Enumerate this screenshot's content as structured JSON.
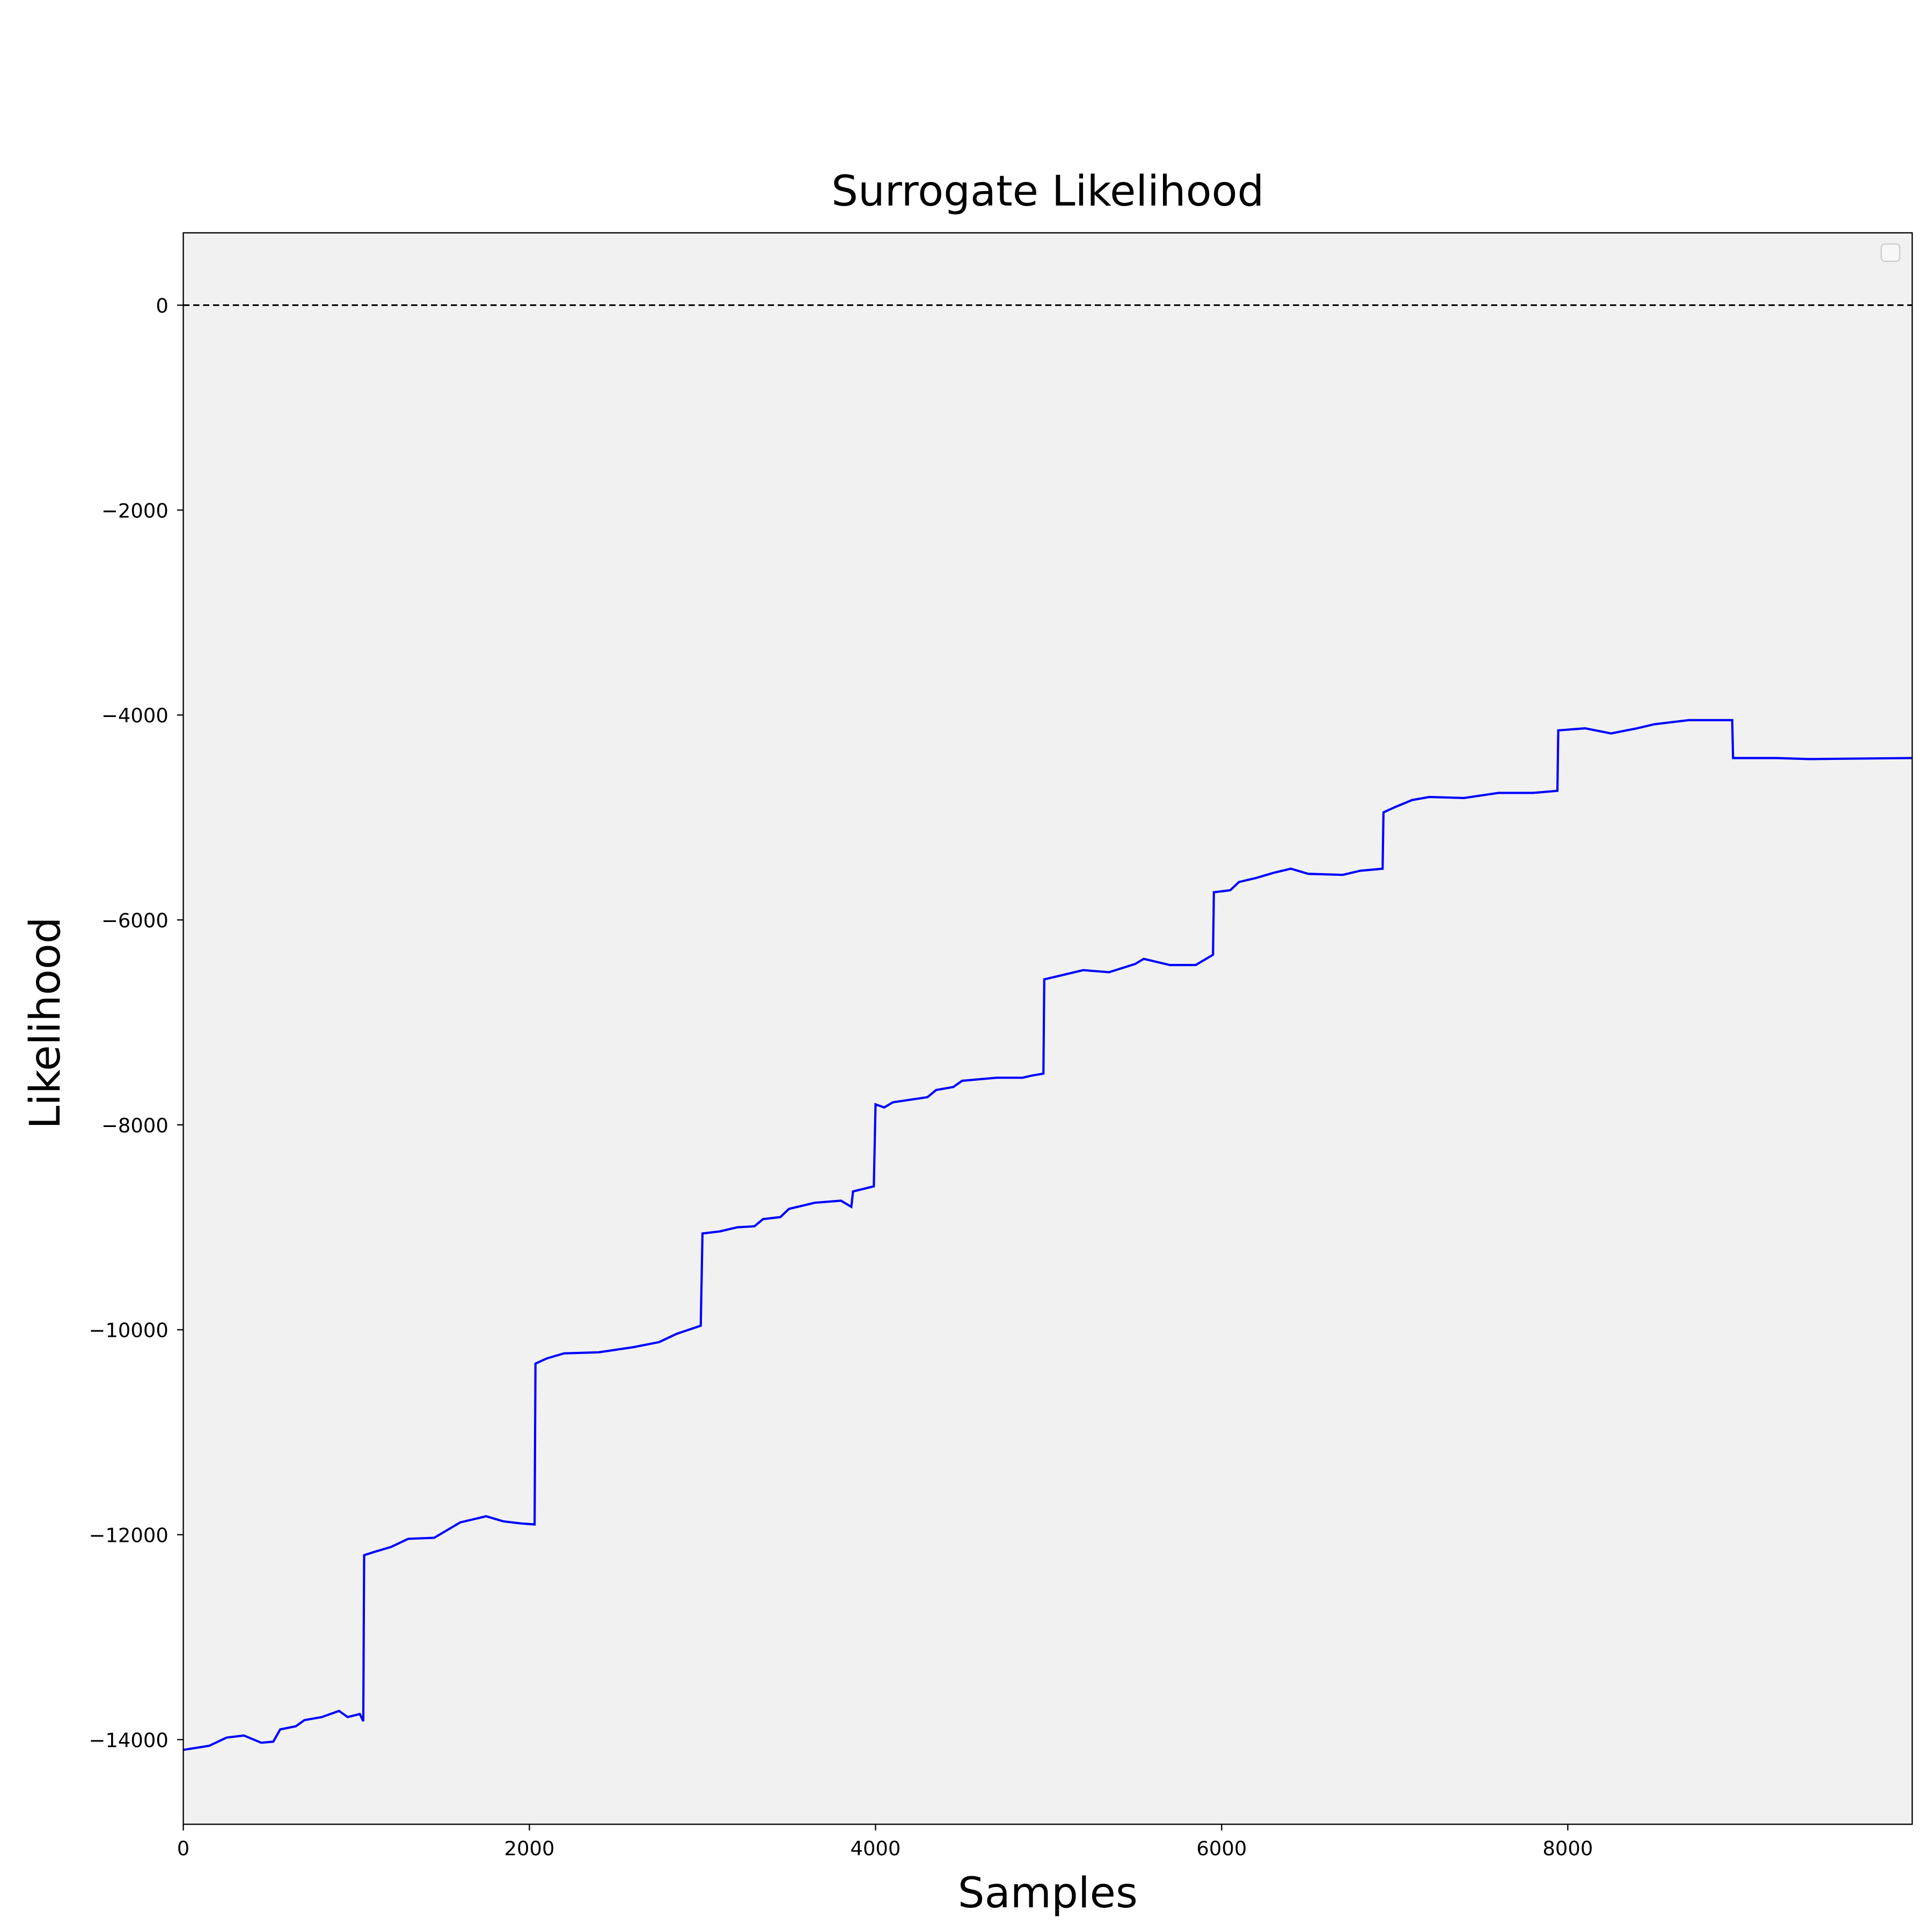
{
  "chart_data": {
    "type": "line",
    "title": "Surrogate  Likelihood",
    "x_label": "Samples",
    "y_label": "Likelihood",
    "x": [
      0,
      150,
      250,
      350,
      450,
      520,
      560,
      650,
      700,
      800,
      900,
      950,
      1020,
      1040,
      1045,
      1100,
      1200,
      1300,
      1450,
      1500,
      1600,
      1750,
      1850,
      1950,
      2030,
      2035,
      2100,
      2200,
      2400,
      2600,
      2750,
      2850,
      2990,
      3000,
      3100,
      3200,
      3300,
      3350,
      3450,
      3500,
      3650,
      3800,
      3860,
      3870,
      3990,
      4000,
      4050,
      4100,
      4300,
      4350,
      4450,
      4500,
      4700,
      4850,
      4900,
      4970,
      4975,
      5050,
      5200,
      5350,
      5500,
      5550,
      5700,
      5850,
      5950,
      5955,
      6050,
      6100,
      6200,
      6300,
      6400,
      6500,
      6700,
      6800,
      6930,
      6935,
      7000,
      7100,
      7200,
      7400,
      7600,
      7800,
      7940,
      7945,
      8100,
      8250,
      8400,
      8500,
      8700,
      8950,
      8955,
      9200,
      9400,
      9990
    ],
    "series": [
      {
        "name": "likelihood",
        "color": "#0000ff",
        "values": [
          -14100,
          -14060,
          -13980,
          -13960,
          -14030,
          -14020,
          -13900,
          -13870,
          -13810,
          -13780,
          -13720,
          -13780,
          -13750,
          -13820,
          -12200,
          -12170,
          -12120,
          -12040,
          -12030,
          -11980,
          -11880,
          -11820,
          -11870,
          -11890,
          -11900,
          -10330,
          -10280,
          -10230,
          -10220,
          -10170,
          -10120,
          -10040,
          -9960,
          -9060,
          -9040,
          -9000,
          -8990,
          -8920,
          -8900,
          -8820,
          -8760,
          -8740,
          -8800,
          -8650,
          -8600,
          -7800,
          -7830,
          -7780,
          -7730,
          -7660,
          -7630,
          -7570,
          -7540,
          -7540,
          -7520,
          -7500,
          -6580,
          -6550,
          -6490,
          -6510,
          -6430,
          -6380,
          -6440,
          -6440,
          -6340,
          -5730,
          -5710,
          -5630,
          -5590,
          -5540,
          -5500,
          -5550,
          -5560,
          -5520,
          -5500,
          -4950,
          -4900,
          -4830,
          -4800,
          -4810,
          -4760,
          -4760,
          -4740,
          -4150,
          -4130,
          -4180,
          -4130,
          -4090,
          -4050,
          -4050,
          -4420,
          -4420,
          -4430,
          -4420
        ]
      }
    ],
    "hline": 0,
    "xlim": [
      0,
      9990
    ],
    "xticks": [
      0,
      2000,
      4000,
      6000,
      8000
    ],
    "ylim": [
      -14826,
      706
    ],
    "yticks": [
      0,
      {
        "value": -2000,
        "label": "−2000"
      },
      {
        "value": -4000,
        "label": "−4000"
      },
      {
        "value": -6000,
        "label": "−6000"
      },
      {
        "value": -8000,
        "label": "−8000"
      },
      {
        "value": -10000,
        "label": "−10000"
      },
      {
        "value": -12000,
        "label": "−12000"
      },
      {
        "value": -14000,
        "label": "−14000"
      }
    ],
    "background": "#f1f1f1"
  }
}
